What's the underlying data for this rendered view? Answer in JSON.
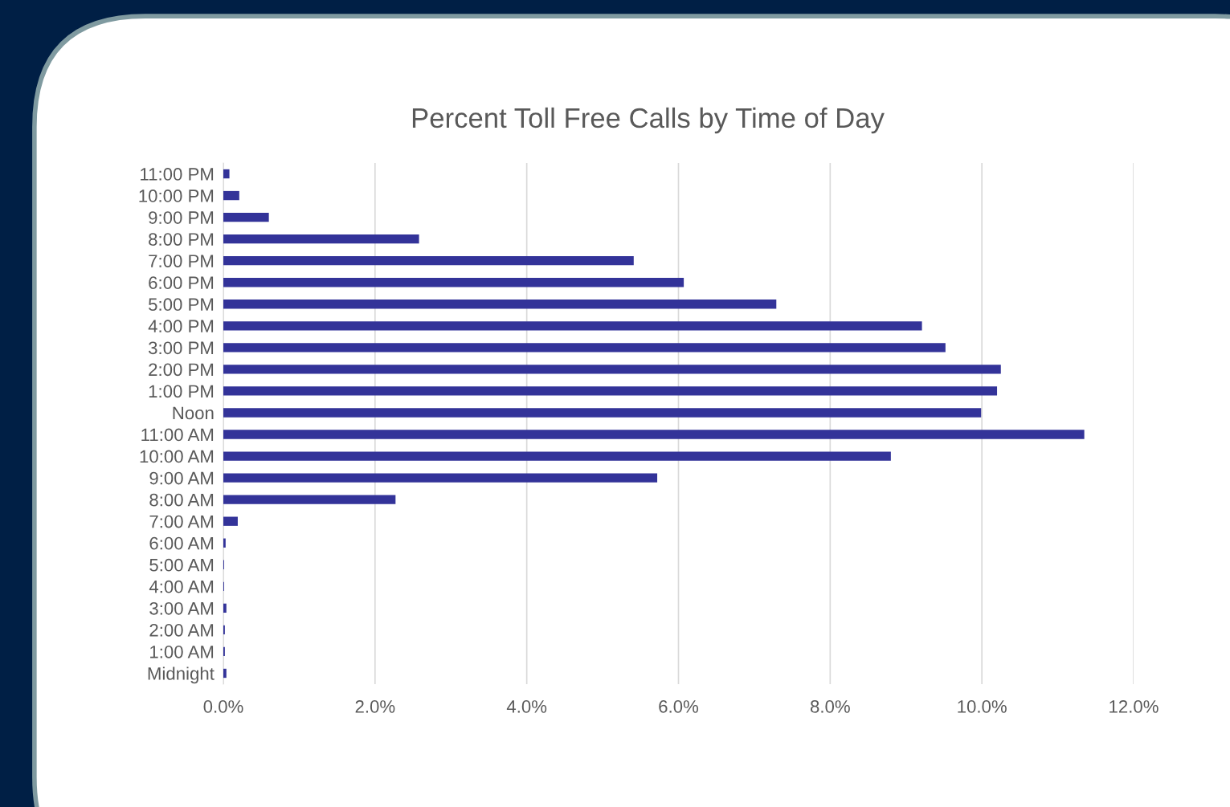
{
  "chart_data": {
    "type": "bar",
    "orientation": "horizontal",
    "title": "Percent Toll Free Calls by Time of Day",
    "categories": [
      "11:00 PM",
      "10:00 PM",
      "9:00 PM",
      "8:00 PM",
      "7:00 PM",
      "6:00 PM",
      "5:00 PM",
      "4:00 PM",
      "3:00 PM",
      "2:00 PM",
      "1:00 PM",
      "Noon",
      "11:00 AM",
      "10:00 AM",
      "9:00 AM",
      "8:00 AM",
      "7:00 AM",
      "6:00 AM",
      "5:00 AM",
      "4:00 AM",
      "3:00 AM",
      "2:00 AM",
      "1:00 AM",
      "Midnight"
    ],
    "values": [
      0.08,
      0.21,
      0.6,
      2.58,
      5.41,
      6.07,
      7.29,
      9.21,
      9.52,
      10.25,
      10.2,
      9.99,
      11.35,
      8.8,
      5.72,
      2.27,
      0.19,
      0.03,
      0.01,
      0.01,
      0.04,
      0.02,
      0.02,
      0.04
    ],
    "color": "#333399",
    "xlim": [
      0,
      12
    ],
    "xticks": [
      {
        "value": 0,
        "label": "0.0%"
      },
      {
        "value": 2,
        "label": "2.0%"
      },
      {
        "value": 4,
        "label": "4.0%"
      },
      {
        "value": 6,
        "label": "6.0%"
      },
      {
        "value": 8,
        "label": "8.0%"
      },
      {
        "value": 10,
        "label": "10.0%"
      },
      {
        "value": 12,
        "label": "12.0%"
      }
    ],
    "grid": "x"
  }
}
